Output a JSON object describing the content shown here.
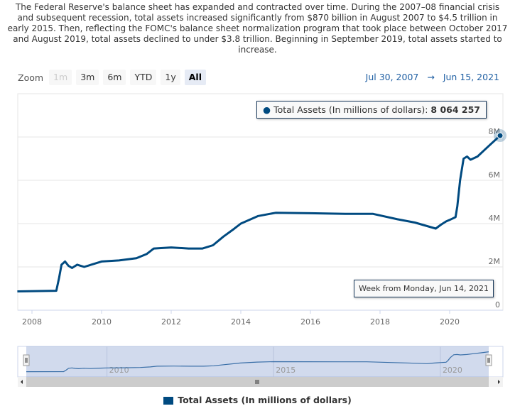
{
  "description": "The Federal Reserve's balance sheet has expanded and contracted over time. During the 2007–08 financial crisis and subsequent recession, total assets increased significantly from $870 billion in August 2007 to $4.5 trillion in early 2015. Then, reflecting the FOMC's balance sheet normalization program that took place between October 2017 and August 2019, total assets declined to under $3.8 trillion. Beginning in September 2019, total assets started to increase.",
  "zoom": {
    "label": "Zoom",
    "buttons": [
      "1m",
      "3m",
      "6m",
      "YTD",
      "1y",
      "All"
    ],
    "disabled": "1m",
    "selected": "All"
  },
  "range": {
    "from": "Jul 30, 2007",
    "arrow": "→",
    "to": "Jun 15, 2021"
  },
  "tooltip": {
    "series": "Total Assets (In millions of dollars):",
    "value": "8 064 257",
    "date": "Week from Monday, Jun 14, 2021"
  },
  "chart_data": {
    "type": "line",
    "series": [
      {
        "name": "Total Assets (In millions of dollars)",
        "color": "#004a80",
        "x": [
          2007.58,
          2008.7,
          2008.78,
          2008.85,
          2008.95,
          2009.05,
          2009.15,
          2009.3,
          2009.5,
          2009.8,
          2010.0,
          2010.5,
          2011.0,
          2011.3,
          2011.5,
          2012.0,
          2012.5,
          2012.9,
          2013.2,
          2013.5,
          2013.8,
          2014.0,
          2014.5,
          2015.0,
          2016.0,
          2017.0,
          2017.8,
          2018.5,
          2019.0,
          2019.6,
          2019.75,
          2019.9,
          2020.0,
          2020.17,
          2020.22,
          2020.3,
          2020.4,
          2020.5,
          2020.6,
          2020.8,
          2021.0,
          2021.2,
          2021.45
        ],
        "values": [
          870000,
          900000,
          1500000,
          2100000,
          2250000,
          2050000,
          1950000,
          2100000,
          2000000,
          2150000,
          2250000,
          2300000,
          2400000,
          2600000,
          2850000,
          2900000,
          2850000,
          2850000,
          3000000,
          3400000,
          3750000,
          4000000,
          4350000,
          4500000,
          4480000,
          4450000,
          4450000,
          4200000,
          4050000,
          3770000,
          3950000,
          4100000,
          4170000,
          4300000,
          4800000,
          6000000,
          7000000,
          7100000,
          6950000,
          7100000,
          7400000,
          7700000,
          8064257
        ]
      }
    ],
    "yticks": [
      {
        "v": 0,
        "label": "0"
      },
      {
        "v": 2000000,
        "label": "2M"
      },
      {
        "v": 4000000,
        "label": "4M"
      },
      {
        "v": 6000000,
        "label": "6M"
      },
      {
        "v": 8000000,
        "label": "8M"
      }
    ],
    "xticks": [
      "2008",
      "2010",
      "2012",
      "2014",
      "2016",
      "2018",
      "2020"
    ],
    "navigator_ticks": [
      "2010",
      "2015",
      "2020"
    ],
    "ylim": [
      0,
      10000000
    ],
    "xlim": [
      2007.58,
      2021.45
    ],
    "grid": true,
    "legend": "bottom"
  },
  "legend": {
    "label": "Total Assets (In millions of dollars)"
  }
}
